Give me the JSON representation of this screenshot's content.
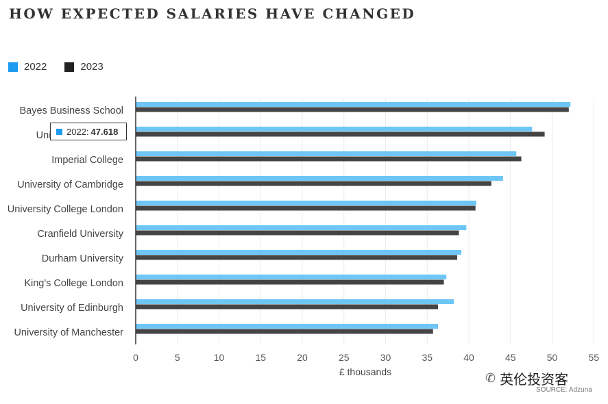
{
  "title": "HOW EXPECTED SALARIES HAVE CHANGED",
  "legend": [
    {
      "label": "2022",
      "color": "#6ec6f7",
      "swatch_color": "#1e9bf0"
    },
    {
      "label": "2023",
      "color": "#444444",
      "swatch_color": "#222222"
    }
  ],
  "tooltip": {
    "series": "2022",
    "value": "47.618",
    "separator": ":"
  },
  "watermark": {
    "icon": "wechat-icon",
    "text": "英伦投资客"
  },
  "source": "SOURCE: Adzuna",
  "chart_data": {
    "type": "bar",
    "orientation": "horizontal",
    "title": "HOW EXPECTED SALARIES HAVE CHANGED",
    "xlabel": "£ thousands",
    "ylabel": "",
    "xlim": [
      0,
      55
    ],
    "xticks": [
      0,
      5,
      10,
      15,
      20,
      25,
      30,
      35,
      40,
      45,
      50,
      55
    ],
    "grid": true,
    "legend_position": "top-left",
    "categories": [
      "Bayes Business School",
      "University of Oxford",
      "Imperial College",
      "University of Cambridge",
      "University College London",
      "Cranfield University",
      "Durham University",
      "King's College London",
      "University of Edinburgh",
      "University of Manchester"
    ],
    "series": [
      {
        "name": "2022",
        "color": "#6ec6f7",
        "values": [
          52.2,
          47.6,
          45.7,
          44.1,
          40.9,
          39.7,
          39.1,
          37.3,
          38.2,
          36.3
        ]
      },
      {
        "name": "2023",
        "color": "#444444",
        "values": [
          52.0,
          49.1,
          46.3,
          42.7,
          40.8,
          38.8,
          38.6,
          37.0,
          36.3,
          35.7
        ]
      }
    ]
  }
}
